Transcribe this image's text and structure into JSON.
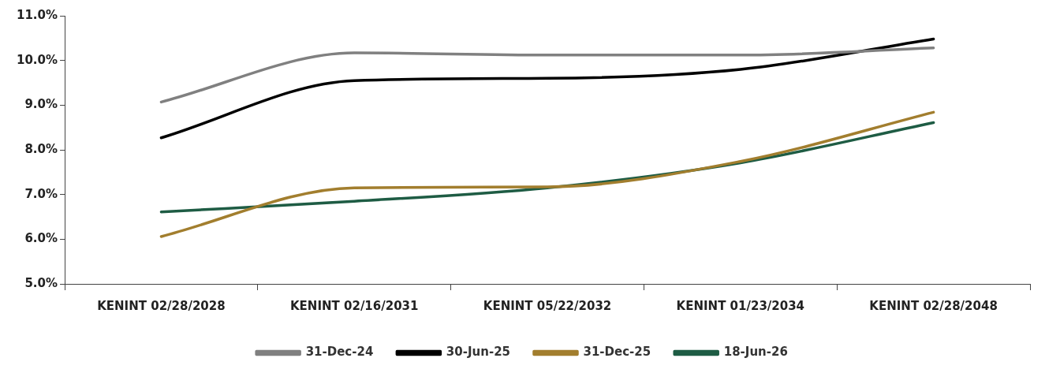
{
  "chart_data": {
    "type": "line",
    "categories": [
      "KENINT 02/28/2028",
      "KENINT 02/16/2031",
      "KENINT 05/22/2032",
      "KENINT 01/23/2034",
      "KENINT 02/28/2048"
    ],
    "series": [
      {
        "name": "31-Dec-24",
        "color": "#808080",
        "values": [
          9.07,
          10.17,
          10.12,
          10.12,
          10.28
        ]
      },
      {
        "name": "30-Jun-25",
        "color": "#000000",
        "values": [
          8.27,
          9.55,
          9.6,
          9.8,
          10.48
        ]
      },
      {
        "name": "31-Dec-25",
        "color": "#a27e2e",
        "values": [
          6.06,
          7.15,
          7.17,
          7.74,
          8.84
        ]
      },
      {
        "name": "18-Jun-26",
        "color": "#1e5c44",
        "values": [
          6.61,
          6.85,
          7.15,
          7.71,
          8.61
        ]
      }
    ],
    "ylim": [
      5,
      11
    ],
    "yticks": [
      {
        "value": 5,
        "label": "5.0%"
      },
      {
        "value": 6,
        "label": "6.0%"
      },
      {
        "value": 7,
        "label": "7.0%"
      },
      {
        "value": 8,
        "label": "8.0%"
      },
      {
        "value": 9,
        "label": "9.0%"
      },
      {
        "value": 10,
        "label": "10.0%"
      },
      {
        "value": 11,
        "label": "11.0%"
      }
    ],
    "grid": false,
    "legend": "bottom",
    "marker": "none",
    "line_style": "solid"
  }
}
